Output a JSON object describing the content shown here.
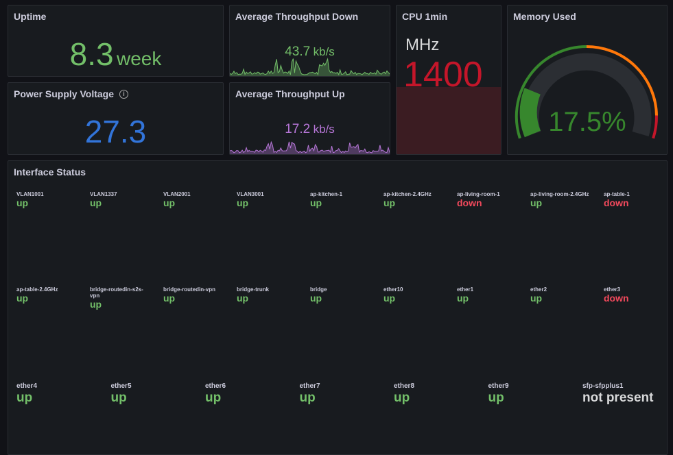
{
  "colors": {
    "green": "#73bf69",
    "red": "#f2495c",
    "blue": "#3274d9",
    "purple": "#b877d9",
    "cpu_red": "#c4162a",
    "gauge_green": "#37872d",
    "orange": "#ff780a",
    "white": "#d8d9da"
  },
  "uptime": {
    "title": "Uptime",
    "value": "8.3",
    "unit": "week"
  },
  "throughput_down": {
    "title": "Average Throughput Down",
    "value": "43.7",
    "unit": "kb/s"
  },
  "throughput_up": {
    "title": "Average Throughput Up",
    "value": "17.2",
    "unit": "kb/s"
  },
  "cpu": {
    "title": "CPU 1min",
    "unit": "MHz",
    "value": "1400"
  },
  "memory": {
    "title": "Memory Used",
    "value": "17.5%",
    "percent": 17.5,
    "thresholds": [
      {
        "from": 0,
        "color": "#37872d"
      },
      {
        "from": 50,
        "color": "#ff780a"
      },
      {
        "from": 90,
        "color": "#c4162a"
      }
    ]
  },
  "voltage": {
    "title": "Power Supply Voltage",
    "info_icon": "info-icon",
    "value": "27.3"
  },
  "interfaces": {
    "title": "Interface Status",
    "rows": [
      [
        {
          "name": "VLAN1001",
          "state": "up"
        },
        {
          "name": "VLAN1337",
          "state": "up"
        },
        {
          "name": "VLAN2001",
          "state": "up"
        },
        {
          "name": "VLAN3001",
          "state": "up"
        },
        {
          "name": "ap-kitchen-1",
          "state": "up"
        },
        {
          "name": "ap-kitchen-2.4GHz",
          "state": "up"
        },
        {
          "name": "ap-living-room-1",
          "state": "down"
        },
        {
          "name": "ap-living-room-2.4GHz",
          "state": "up"
        },
        {
          "name": "ap-table-1",
          "state": "down"
        }
      ],
      [
        {
          "name": "ap-table-2.4GHz",
          "state": "up"
        },
        {
          "name": "bridge-routedin-s2s-vpn",
          "state": "up"
        },
        {
          "name": "bridge-routedin-vpn",
          "state": "up"
        },
        {
          "name": "bridge-trunk",
          "state": "up"
        },
        {
          "name": "bridge",
          "state": "up"
        },
        {
          "name": "ether10",
          "state": "up"
        },
        {
          "name": "ether1",
          "state": "up"
        },
        {
          "name": "ether2",
          "state": "up"
        },
        {
          "name": "ether3",
          "state": "down"
        }
      ],
      [
        {
          "name": "ether4",
          "state": "up"
        },
        {
          "name": "ether5",
          "state": "up"
        },
        {
          "name": "ether6",
          "state": "up"
        },
        {
          "name": "ether7",
          "state": "up"
        },
        {
          "name": "ether8",
          "state": "up"
        },
        {
          "name": "ether9",
          "state": "up"
        },
        {
          "name": "sfp-sfpplus1",
          "state": "not present"
        }
      ]
    ]
  }
}
